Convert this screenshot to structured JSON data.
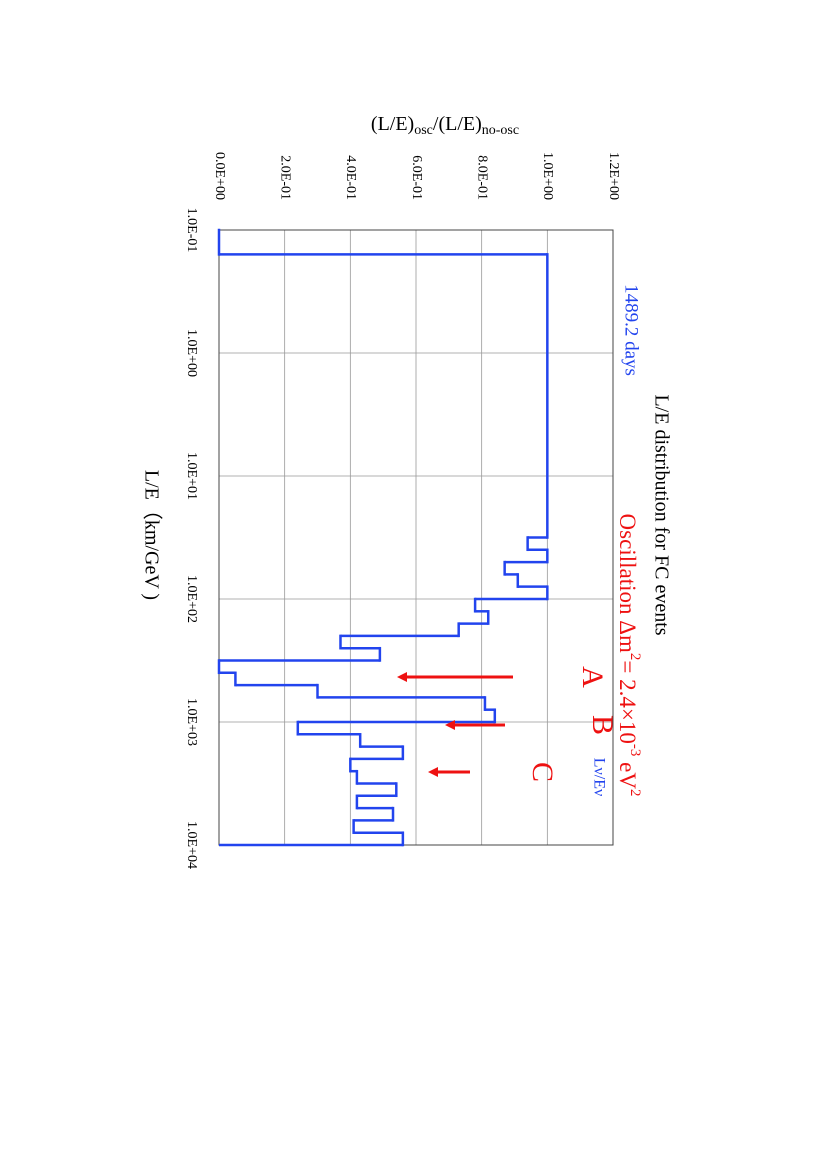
{
  "chart_data": {
    "type": "histogram",
    "title": "L/E distribution for FC events",
    "subtitle": "1489.2 days",
    "annotation_parts": [
      "Oscillation Δm",
      "2",
      "= 2.4×10",
      "-3",
      " eV",
      "2"
    ],
    "series_label": "Lν/Eν",
    "markers": [
      "A",
      "B",
      "C"
    ],
    "ylabel_parts": [
      "(L/E)",
      "osc",
      "/(L/E)",
      "no-osc"
    ],
    "xlabel": "L/E（km/GeV )",
    "color": "#2244ee",
    "annotation_color": "#ee1111",
    "bins": [
      0.1,
      0.158,
      31.6,
      39.8,
      50.1,
      63.1,
      79.4,
      100,
      125.9,
      158.5,
      199.5,
      251.2,
      316.2,
      398.1,
      501.2,
      631,
      794.3,
      1000,
      1258.9,
      1584.9,
      1995.3,
      2511.9,
      3162.3,
      3981.1,
      5011.9,
      6309.6,
      7943.3,
      10000
    ],
    "values": [
      0,
      1.0,
      0.94,
      1.0,
      0.87,
      0.91,
      1.0,
      0.78,
      0.82,
      0.73,
      0.37,
      0.49,
      0.0,
      0.05,
      0.3,
      0.81,
      0.84,
      0.24,
      0.43,
      0.56,
      0.4,
      0.42,
      0.54,
      0.42,
      0.53,
      0.41,
      0.56
    ],
    "xscale": "log",
    "xlim": [
      0.1,
      10000
    ],
    "xticks": [
      {
        "value": 0.1,
        "label": "1.0E-01"
      },
      {
        "value": 1,
        "label": "1.0E+00"
      },
      {
        "value": 10,
        "label": "1.0E+01"
      },
      {
        "value": 100,
        "label": "1.0E+02"
      },
      {
        "value": 1000,
        "label": "1.0E+03"
      },
      {
        "value": 10000,
        "label": "1.0E+04"
      }
    ],
    "ylim": [
      0,
      1.2
    ],
    "yticks": [
      {
        "value": 0,
        "label": "0.0E+00"
      },
      {
        "value": 0.2,
        "label": "2.0E-01"
      },
      {
        "value": 0.4,
        "label": "4.0E-01"
      },
      {
        "value": 0.6,
        "label": "6.0E-01"
      },
      {
        "value": 0.8,
        "label": "8.0E-01"
      },
      {
        "value": 1.0,
        "label": "1.0E+00"
      },
      {
        "value": 1.2,
        "label": "1.2E+00"
      }
    ],
    "grid": true
  }
}
